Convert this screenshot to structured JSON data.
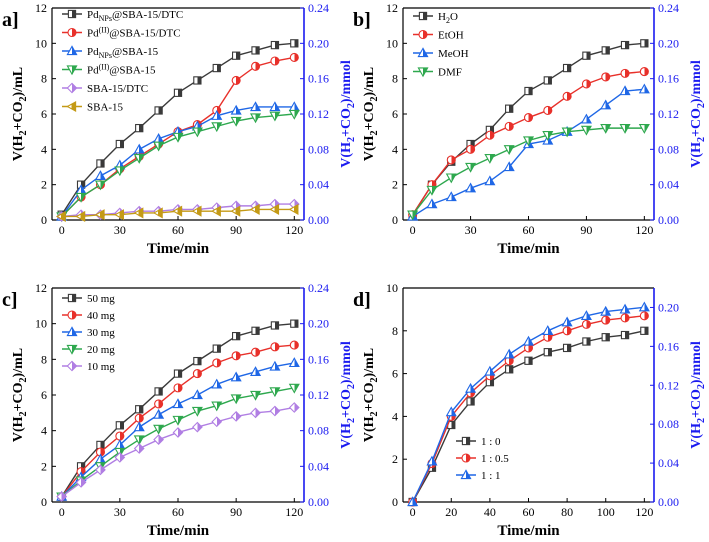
{
  "figure": {
    "x_label": "Time/min",
    "y_left_label": "V(H",
    "y_left_sub": "2",
    "y_left_mid": "+CO",
    "y_left_tail": ")/mL",
    "y_right_label": "V(H",
    "y_right_tail": ")/mmol"
  },
  "colors": {
    "black": "#3a3a3a",
    "red": "#e8302a",
    "blue": "#1f67e6",
    "green": "#2ea84e",
    "purple": "#b07ee3",
    "gold": "#c49a16",
    "right_axis": "#1b1bf0"
  },
  "chart_data": [
    {
      "type": "line",
      "panel_label": "a]",
      "x_ticks": [
        "0",
        "30",
        "60",
        "90",
        "120"
      ],
      "y_ticks": [
        "0",
        "2",
        "4",
        "6",
        "8",
        "10",
        "12"
      ],
      "y2_ticks": [
        "0.00",
        "0.04",
        "0.08",
        "0.12",
        "0.16",
        "0.20",
        "0.24"
      ],
      "xlim": [
        -5,
        125
      ],
      "ylim": [
        0,
        12
      ],
      "y2lim": [
        0,
        0.24
      ],
      "x": [
        0,
        10,
        20,
        30,
        40,
        50,
        60,
        70,
        80,
        90,
        100,
        110,
        120
      ],
      "series": [
        {
          "name": "PdNPs@SBA-15/DTC",
          "name_main": "Pd",
          "name_sub": "NPs",
          "name_sup": "",
          "name_rest": "@SBA-15/DTC",
          "color": "black",
          "marker": "square",
          "values": [
            0.3,
            2.0,
            3.2,
            4.3,
            5.2,
            6.2,
            7.2,
            7.9,
            8.6,
            9.3,
            9.6,
            9.9,
            10.0
          ]
        },
        {
          "name": "Pd(II)@SBA-15/DTC",
          "name_main": "Pd",
          "name_sub": "",
          "name_sup": "(II)",
          "name_rest": "@SBA-15/DTC",
          "color": "red",
          "marker": "circle",
          "values": [
            0.2,
            1.3,
            2.0,
            2.9,
            3.6,
            4.3,
            5.0,
            5.4,
            6.2,
            7.9,
            8.7,
            9.0,
            9.2
          ]
        },
        {
          "name": "PdNPs@SBA-15",
          "name_main": "Pd",
          "name_sub": "NPs",
          "name_sup": "",
          "name_rest": "@SBA-15",
          "color": "blue",
          "marker": "triangle",
          "values": [
            0.2,
            1.7,
            2.5,
            3.1,
            4.0,
            4.6,
            5.0,
            5.3,
            5.9,
            6.2,
            6.4,
            6.4,
            6.4
          ]
        },
        {
          "name": "Pd(II)@SBA-15",
          "name_main": "Pd",
          "name_sub": "",
          "name_sup": "(II)",
          "name_rest": "@SBA-15",
          "color": "green",
          "marker": "triangle-down",
          "values": [
            0.2,
            1.3,
            2.0,
            2.8,
            3.5,
            4.2,
            4.7,
            5.0,
            5.3,
            5.6,
            5.8,
            5.9,
            6.0
          ]
        },
        {
          "name": "SBA-15/DTC",
          "name_main": "SBA-15/DTC",
          "name_sub": "",
          "name_sup": "",
          "name_rest": "",
          "color": "purple",
          "marker": "diamond",
          "values": [
            0.2,
            0.3,
            0.3,
            0.4,
            0.5,
            0.5,
            0.6,
            0.6,
            0.7,
            0.8,
            0.8,
            0.9,
            0.9
          ]
        },
        {
          "name": "SBA-15",
          "name_main": "SBA-15",
          "name_sub": "",
          "name_sup": "",
          "name_rest": "",
          "color": "gold",
          "marker": "triangle-left",
          "values": [
            0.2,
            0.2,
            0.3,
            0.3,
            0.4,
            0.4,
            0.5,
            0.5,
            0.5,
            0.5,
            0.6,
            0.6,
            0.6
          ]
        }
      ]
    },
    {
      "type": "line",
      "panel_label": "b]",
      "x_ticks": [
        "0",
        "30",
        "60",
        "90",
        "120"
      ],
      "y_ticks": [
        "0",
        "2",
        "4",
        "6",
        "8",
        "10",
        "12"
      ],
      "y2_ticks": [
        "0.00",
        "0.04",
        "0.08",
        "0.12",
        "0.16",
        "0.20",
        "0.24"
      ],
      "xlim": [
        -5,
        125
      ],
      "ylim": [
        0,
        12
      ],
      "y2lim": [
        0,
        0.24
      ],
      "x": [
        0,
        10,
        20,
        30,
        40,
        50,
        60,
        70,
        80,
        90,
        100,
        110,
        120
      ],
      "series": [
        {
          "name": "H2O",
          "name_main": "H",
          "name_sub": "2",
          "name_sup": "",
          "name_rest": "O",
          "color": "black",
          "marker": "square",
          "values": [
            0.3,
            2.0,
            3.3,
            4.3,
            5.1,
            6.3,
            7.3,
            7.9,
            8.6,
            9.3,
            9.6,
            9.9,
            10.0
          ]
        },
        {
          "name": "EtOH",
          "name_main": "EtOH",
          "name_sub": "",
          "name_sup": "",
          "name_rest": "",
          "color": "red",
          "marker": "circle",
          "values": [
            0.3,
            2.0,
            3.4,
            4.0,
            4.8,
            5.3,
            5.8,
            6.2,
            7.0,
            7.7,
            8.1,
            8.3,
            8.4
          ]
        },
        {
          "name": "MeOH",
          "name_main": "MeOH",
          "name_sub": "",
          "name_sup": "",
          "name_rest": "",
          "color": "blue",
          "marker": "triangle",
          "values": [
            0.2,
            0.9,
            1.3,
            1.8,
            2.2,
            3.0,
            4.3,
            4.5,
            5.0,
            5.7,
            6.5,
            7.3,
            7.4
          ]
        },
        {
          "name": "DMF",
          "name_main": "DMF",
          "name_sub": "",
          "name_sup": "",
          "name_rest": "",
          "color": "green",
          "marker": "triangle-down",
          "values": [
            0.3,
            1.7,
            2.4,
            3.0,
            3.5,
            4.0,
            4.5,
            4.8,
            5.0,
            5.1,
            5.2,
            5.2,
            5.2
          ]
        }
      ]
    },
    {
      "type": "line",
      "panel_label": "c]",
      "x_ticks": [
        "0",
        "30",
        "60",
        "90",
        "120"
      ],
      "y_ticks": [
        "0",
        "2",
        "4",
        "6",
        "8",
        "10",
        "12"
      ],
      "y2_ticks": [
        "0.00",
        "0.04",
        "0.08",
        "0.12",
        "0.16",
        "0.20",
        "0.24"
      ],
      "xlim": [
        -5,
        125
      ],
      "ylim": [
        0,
        12
      ],
      "y2lim": [
        0,
        0.24
      ],
      "x": [
        0,
        10,
        20,
        30,
        40,
        50,
        60,
        70,
        80,
        90,
        100,
        110,
        120
      ],
      "series": [
        {
          "name": "50 mg",
          "name_main": "50 mg",
          "name_sub": "",
          "name_sup": "",
          "name_rest": "",
          "color": "black",
          "marker": "square",
          "values": [
            0.3,
            2.0,
            3.2,
            4.3,
            5.2,
            6.2,
            7.2,
            7.9,
            8.6,
            9.3,
            9.6,
            9.9,
            10.0
          ]
        },
        {
          "name": "40 mg",
          "name_main": "40 mg",
          "name_sub": "",
          "name_sup": "",
          "name_rest": "",
          "color": "red",
          "marker": "circle",
          "values": [
            0.3,
            1.7,
            2.8,
            3.7,
            4.7,
            5.5,
            6.4,
            7.2,
            7.8,
            8.2,
            8.4,
            8.7,
            8.8
          ]
        },
        {
          "name": "30 mg",
          "name_main": "30 mg",
          "name_sub": "",
          "name_sup": "",
          "name_rest": "",
          "color": "blue",
          "marker": "triangle",
          "values": [
            0.3,
            1.4,
            2.4,
            3.2,
            4.2,
            4.9,
            5.5,
            6.0,
            6.6,
            7.0,
            7.3,
            7.6,
            7.8
          ]
        },
        {
          "name": "20 mg",
          "name_main": "20 mg",
          "name_sub": "",
          "name_sup": "",
          "name_rest": "",
          "color": "green",
          "marker": "triangle-down",
          "values": [
            0.3,
            1.2,
            2.0,
            2.8,
            3.5,
            4.1,
            4.6,
            5.1,
            5.4,
            5.8,
            6.0,
            6.2,
            6.4
          ]
        },
        {
          "name": "10 mg",
          "name_main": "10 mg",
          "name_sub": "",
          "name_sup": "",
          "name_rest": "",
          "color": "purple",
          "marker": "diamond",
          "values": [
            0.3,
            1.1,
            1.8,
            2.5,
            3.0,
            3.5,
            3.9,
            4.2,
            4.5,
            4.8,
            5.0,
            5.1,
            5.3
          ]
        }
      ]
    },
    {
      "type": "line",
      "panel_label": "d]",
      "x_ticks": [
        "0",
        "20",
        "40",
        "60",
        "80",
        "100",
        "120"
      ],
      "y_ticks": [
        "0",
        "2",
        "4",
        "6",
        "8",
        "10"
      ],
      "y2_ticks": [
        "0.00",
        "0.04",
        "0.08",
        "0.12",
        "0.16",
        "0.20"
      ],
      "xlim": [
        -5,
        125
      ],
      "ylim": [
        0,
        10
      ],
      "y2lim": [
        0,
        0.22
      ],
      "x": [
        0,
        10,
        20,
        30,
        40,
        50,
        60,
        70,
        80,
        90,
        100,
        110,
        120
      ],
      "series": [
        {
          "name": "1 : 0",
          "name_main": "1 : 0",
          "name_sub": "",
          "name_sup": "",
          "name_rest": "",
          "color": "black",
          "marker": "square",
          "values": [
            0.0,
            1.6,
            3.6,
            4.7,
            5.6,
            6.2,
            6.6,
            7.0,
            7.2,
            7.5,
            7.7,
            7.8,
            8.0
          ]
        },
        {
          "name": "1 : 0.5",
          "name_main": "1 : 0.5",
          "name_sub": "",
          "name_sup": "",
          "name_rest": "",
          "color": "red",
          "marker": "circle",
          "values": [
            0.0,
            1.8,
            4.0,
            5.1,
            5.9,
            6.6,
            7.2,
            7.7,
            8.0,
            8.3,
            8.5,
            8.6,
            8.7
          ]
        },
        {
          "name": "1 : 1",
          "name_main": "1 : 1",
          "name_sub": "",
          "name_sup": "",
          "name_rest": "",
          "color": "blue",
          "marker": "triangle",
          "values": [
            0.0,
            1.9,
            4.2,
            5.3,
            6.1,
            6.9,
            7.5,
            8.0,
            8.4,
            8.7,
            8.9,
            9.0,
            9.1
          ]
        }
      ]
    }
  ]
}
